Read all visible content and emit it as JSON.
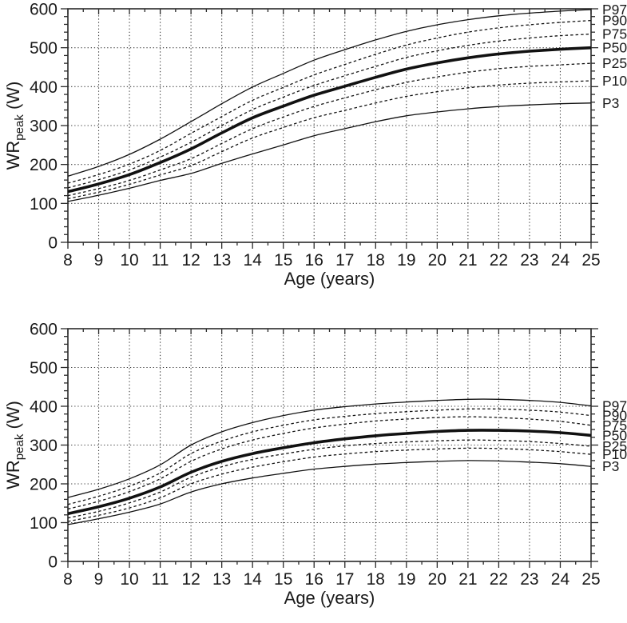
{
  "page": {
    "background": "#ffffff"
  },
  "styles": {
    "axis_color": "#2a2a2a",
    "grid_color": "#3c3c3c",
    "text_color": "#1a1a1a",
    "curve_color": "#111111"
  },
  "chart_data": [
    {
      "type": "line",
      "panel": "top",
      "title": "",
      "xlabel": "Age (years)",
      "ylabel": {
        "main": "WR",
        "sub": "peak",
        "unit": " (W)"
      },
      "xlim": [
        8,
        25
      ],
      "ylim": [
        0,
        600
      ],
      "xticks": [
        8,
        9,
        10,
        11,
        12,
        13,
        14,
        15,
        16,
        17,
        18,
        19,
        20,
        21,
        22,
        23,
        24,
        25
      ],
      "yticks": [
        0,
        100,
        200,
        300,
        400,
        500,
        600
      ],
      "x_minor_step": 0.5,
      "y_minor_step": 20,
      "grid": "dotted",
      "legend_position": "right",
      "x": [
        8,
        9,
        10,
        11,
        12,
        13,
        14,
        15,
        16,
        17,
        18,
        19,
        20,
        21,
        22,
        23,
        24,
        25
      ],
      "series": [
        {
          "name": "P97",
          "style": "solid",
          "width": 1.3,
          "values": [
            170,
            195,
            226,
            265,
            310,
            356,
            399,
            434,
            468,
            495,
            520,
            542,
            559,
            572,
            582,
            589,
            594,
            598
          ]
        },
        {
          "name": "P90",
          "style": "dashed",
          "width": 1.3,
          "values": [
            152,
            174,
            201,
            236,
            280,
            323,
            365,
            398,
            430,
            457,
            483,
            507,
            525,
            540,
            551,
            559,
            565,
            570
          ]
        },
        {
          "name": "P75",
          "style": "dashed",
          "width": 1.3,
          "values": [
            140,
            161,
            186,
            219,
            257,
            300,
            341,
            373,
            403,
            428,
            452,
            475,
            492,
            506,
            517,
            525,
            531,
            535
          ]
        },
        {
          "name": "P50",
          "style": "solid",
          "width": 3.6,
          "values": [
            130,
            150,
            174,
            205,
            240,
            281,
            320,
            350,
            378,
            401,
            424,
            445,
            461,
            474,
            484,
            491,
            496,
            500
          ]
        },
        {
          "name": "P25",
          "style": "dashed",
          "width": 1.3,
          "values": [
            120,
            138,
            159,
            186,
            215,
            254,
            292,
            322,
            349,
            371,
            392,
            411,
            425,
            437,
            446,
            452,
            456,
            460
          ]
        },
        {
          "name": "P10",
          "style": "dashed",
          "width": 1.3,
          "values": [
            112,
            129,
            149,
            173,
            197,
            233,
            268,
            295,
            320,
            339,
            358,
            375,
            387,
            397,
            404,
            409,
            412,
            415
          ]
        },
        {
          "name": "P3",
          "style": "solid",
          "width": 1.3,
          "values": [
            105,
            121,
            139,
            159,
            177,
            203,
            227,
            250,
            274,
            292,
            310,
            325,
            335,
            343,
            349,
            353,
            356,
            358
          ]
        }
      ]
    },
    {
      "type": "line",
      "panel": "bottom",
      "title": "",
      "xlabel": "Age (years)",
      "ylabel": {
        "main": "WR",
        "sub": "peak",
        "unit": " (W)"
      },
      "xlim": [
        8,
        25
      ],
      "ylim": [
        0,
        600
      ],
      "xticks": [
        8,
        9,
        10,
        11,
        12,
        13,
        14,
        15,
        16,
        17,
        18,
        19,
        20,
        21,
        22,
        23,
        24,
        25
      ],
      "yticks": [
        0,
        100,
        200,
        300,
        400,
        500,
        600
      ],
      "x_minor_step": 0.5,
      "y_minor_step": 20,
      "grid": "dotted",
      "legend_position": "right",
      "x": [
        8,
        9,
        10,
        11,
        12,
        13,
        14,
        15,
        16,
        17,
        18,
        19,
        20,
        21,
        22,
        23,
        24,
        25
      ],
      "series": [
        {
          "name": "P97",
          "style": "solid",
          "width": 1.3,
          "values": [
            165,
            186,
            213,
            249,
            300,
            334,
            358,
            376,
            390,
            399,
            406,
            411,
            415,
            418,
            418,
            415,
            410,
            401
          ]
        },
        {
          "name": "P90",
          "style": "dashed",
          "width": 1.3,
          "values": [
            147,
            168,
            194,
            228,
            278,
            310,
            334,
            351,
            365,
            374,
            381,
            386,
            390,
            393,
            393,
            390,
            385,
            376
          ]
        },
        {
          "name": "P75",
          "style": "dashed",
          "width": 1.3,
          "values": [
            135,
            155,
            180,
            213,
            258,
            290,
            313,
            330,
            344,
            354,
            362,
            367,
            371,
            373,
            371,
            367,
            361,
            351
          ]
        },
        {
          "name": "P50",
          "style": "solid",
          "width": 3.6,
          "values": [
            123,
            141,
            163,
            192,
            230,
            258,
            278,
            293,
            306,
            316,
            324,
            330,
            335,
            338,
            338,
            336,
            332,
            325
          ]
        },
        {
          "name": "P25",
          "style": "dashed",
          "width": 1.3,
          "values": [
            112,
            129,
            151,
            179,
            217,
            244,
            263,
            277,
            289,
            298,
            304,
            308,
            311,
            313,
            312,
            309,
            304,
            297
          ]
        },
        {
          "name": "P10",
          "style": "dashed",
          "width": 1.3,
          "values": [
            103,
            119,
            138,
            164,
            200,
            225,
            243,
            257,
            269,
            277,
            283,
            287,
            290,
            292,
            291,
            288,
            283,
            276
          ]
        },
        {
          "name": "P3",
          "style": "solid",
          "width": 1.3,
          "values": [
            95,
            110,
            127,
            148,
            179,
            200,
            215,
            227,
            238,
            245,
            251,
            255,
            258,
            260,
            259,
            256,
            252,
            245
          ]
        }
      ]
    }
  ]
}
